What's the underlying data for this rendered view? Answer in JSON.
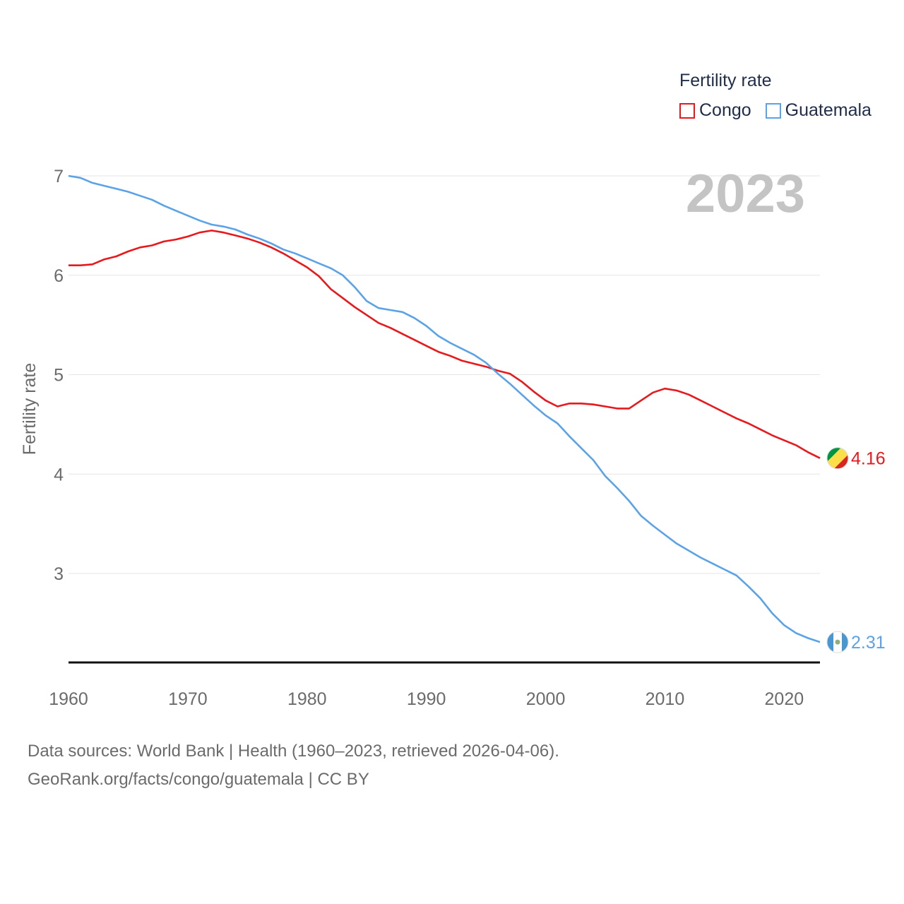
{
  "chart_data": {
    "type": "line",
    "title": "",
    "ylabel": "Fertility rate",
    "xlabel": "",
    "year_watermark": "2023",
    "xlim": [
      1960,
      2023
    ],
    "ylim": [
      2.1,
      7.1
    ],
    "x_ticks": [
      1960,
      1970,
      1980,
      1990,
      2000,
      2010,
      2020
    ],
    "y_ticks": [
      3,
      4,
      5,
      6,
      7
    ],
    "legend": {
      "title": "Fertility rate",
      "position": "top-right"
    },
    "x": [
      1960,
      1961,
      1962,
      1963,
      1964,
      1965,
      1966,
      1967,
      1968,
      1969,
      1970,
      1971,
      1972,
      1973,
      1974,
      1975,
      1976,
      1977,
      1978,
      1979,
      1980,
      1981,
      1982,
      1983,
      1984,
      1985,
      1986,
      1987,
      1988,
      1989,
      1990,
      1991,
      1992,
      1993,
      1994,
      1995,
      1996,
      1997,
      1998,
      1999,
      2000,
      2001,
      2002,
      2003,
      2004,
      2005,
      2006,
      2007,
      2008,
      2009,
      2010,
      2011,
      2012,
      2013,
      2014,
      2015,
      2016,
      2017,
      2018,
      2019,
      2020,
      2021,
      2022,
      2023
    ],
    "series": [
      {
        "name": "Congo",
        "color": "#e8191c",
        "end_label": "4.16",
        "flag": "congo-flag",
        "values": [
          6.1,
          6.1,
          6.11,
          6.16,
          6.19,
          6.24,
          6.28,
          6.3,
          6.34,
          6.36,
          6.39,
          6.43,
          6.45,
          6.43,
          6.4,
          6.37,
          6.33,
          6.28,
          6.22,
          6.15,
          6.08,
          5.99,
          5.86,
          5.77,
          5.68,
          5.6,
          5.52,
          5.47,
          5.41,
          5.35,
          5.29,
          5.23,
          5.19,
          5.14,
          5.11,
          5.08,
          5.04,
          5.01,
          4.93,
          4.83,
          4.74,
          4.68,
          4.71,
          4.71,
          4.7,
          4.68,
          4.66,
          4.66,
          4.74,
          4.82,
          4.86,
          4.84,
          4.8,
          4.74,
          4.68,
          4.62,
          4.56,
          4.51,
          4.45,
          4.39,
          4.34,
          4.29,
          4.22,
          4.16
        ]
      },
      {
        "name": "Guatemala",
        "color": "#5aa3e8",
        "end_label": "2.31",
        "flag": "guatemala-flag",
        "values": [
          7.0,
          6.98,
          6.93,
          6.9,
          6.87,
          6.84,
          6.8,
          6.76,
          6.7,
          6.65,
          6.6,
          6.55,
          6.51,
          6.49,
          6.46,
          6.41,
          6.37,
          6.32,
          6.26,
          6.22,
          6.17,
          6.12,
          6.07,
          6.0,
          5.88,
          5.74,
          5.67,
          5.65,
          5.63,
          5.57,
          5.49,
          5.39,
          5.32,
          5.26,
          5.2,
          5.12,
          5.01,
          4.91,
          4.8,
          4.69,
          4.59,
          4.51,
          4.38,
          4.26,
          4.14,
          3.98,
          3.86,
          3.73,
          3.58,
          3.48,
          3.39,
          3.3,
          3.23,
          3.16,
          3.1,
          3.04,
          2.98,
          2.87,
          2.75,
          2.6,
          2.48,
          2.4,
          2.35,
          2.31
        ]
      }
    ]
  },
  "footer": {
    "line1": "Data sources: World Bank | Health (1960–2023, retrieved 2026-04-06).",
    "line2": "GeoRank.org/facts/congo/guatemala | CC BY"
  }
}
